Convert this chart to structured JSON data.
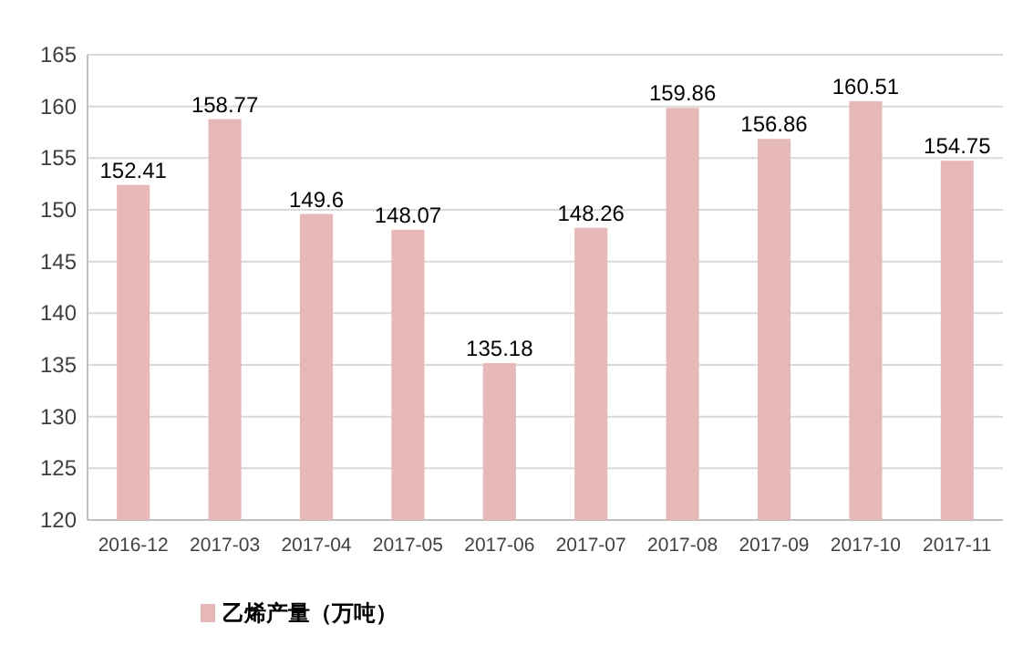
{
  "chart_data": {
    "type": "bar",
    "categories": [
      "2016-12",
      "2017-03",
      "2017-04",
      "2017-05",
      "2017-06",
      "2017-07",
      "2017-08",
      "2017-09",
      "2017-10",
      "2017-11"
    ],
    "series": [
      {
        "name": "乙烯产量（万吨）",
        "color": "#e6b9b8",
        "values": [
          152.41,
          158.77,
          149.6,
          148.07,
          135.18,
          148.26,
          159.86,
          156.86,
          160.51,
          154.75
        ]
      }
    ],
    "ylim": [
      120,
      165
    ],
    "yticks": [
      120,
      125,
      130,
      135,
      140,
      145,
      150,
      155,
      160,
      165
    ],
    "grid": "y",
    "legend": "bottom left",
    "data_labels": true
  }
}
